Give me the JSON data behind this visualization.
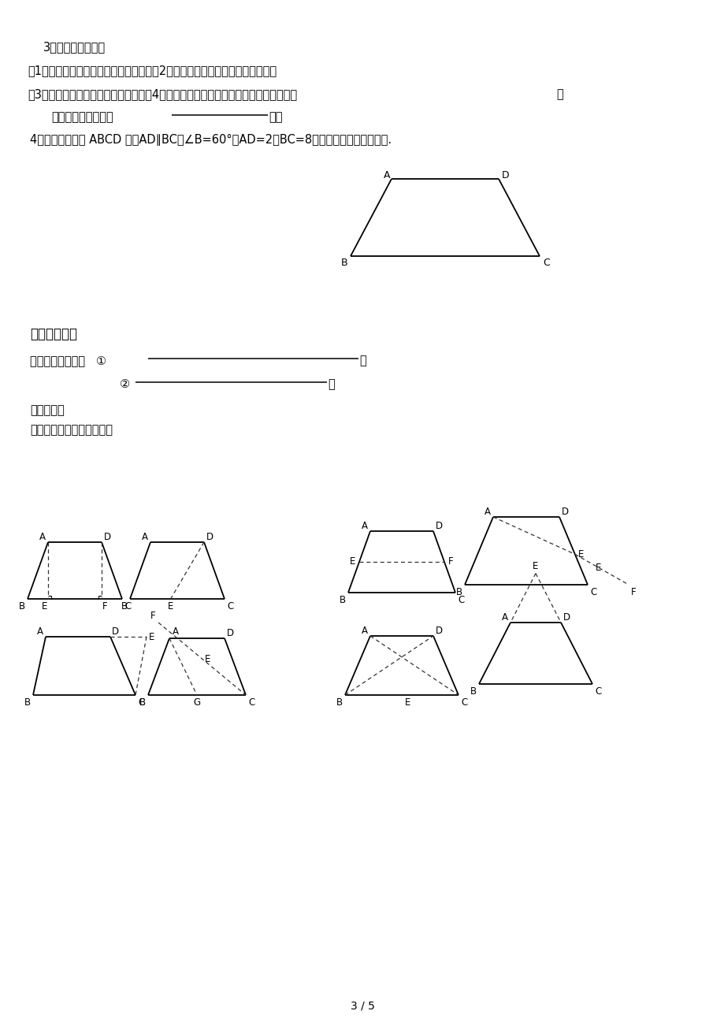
{
  "bg_color": "#ffffff",
  "page_number": "3 / 5",
  "texts": {
    "t1": "3、给出下面命题：",
    "t2": "（1）有两个角相等的梯形是等腼梯形；（2）有两条边相等的梯形是等腼梯形；",
    "t3": "（3）对角线相等的梯形是等腼梯形；（4）等腼梯形上、下底中点的连线垂直于底边。",
    "t4a": "其中正确的命题共有",
    "t4b": "个。",
    "t5": "4、已知等腼梯形 ABCD 中，AD∥BC，∠B=60°，AD=2，BC=8，求这个等腼梯形的周长.",
    "s5": "五、课堂小结",
    "jd": "等腼梯形的判定：",
    "c1": "①",
    "c2": "②",
    "at": "课后思考：",
    "hint": "（梯形辅助线的常规添法）"
  }
}
